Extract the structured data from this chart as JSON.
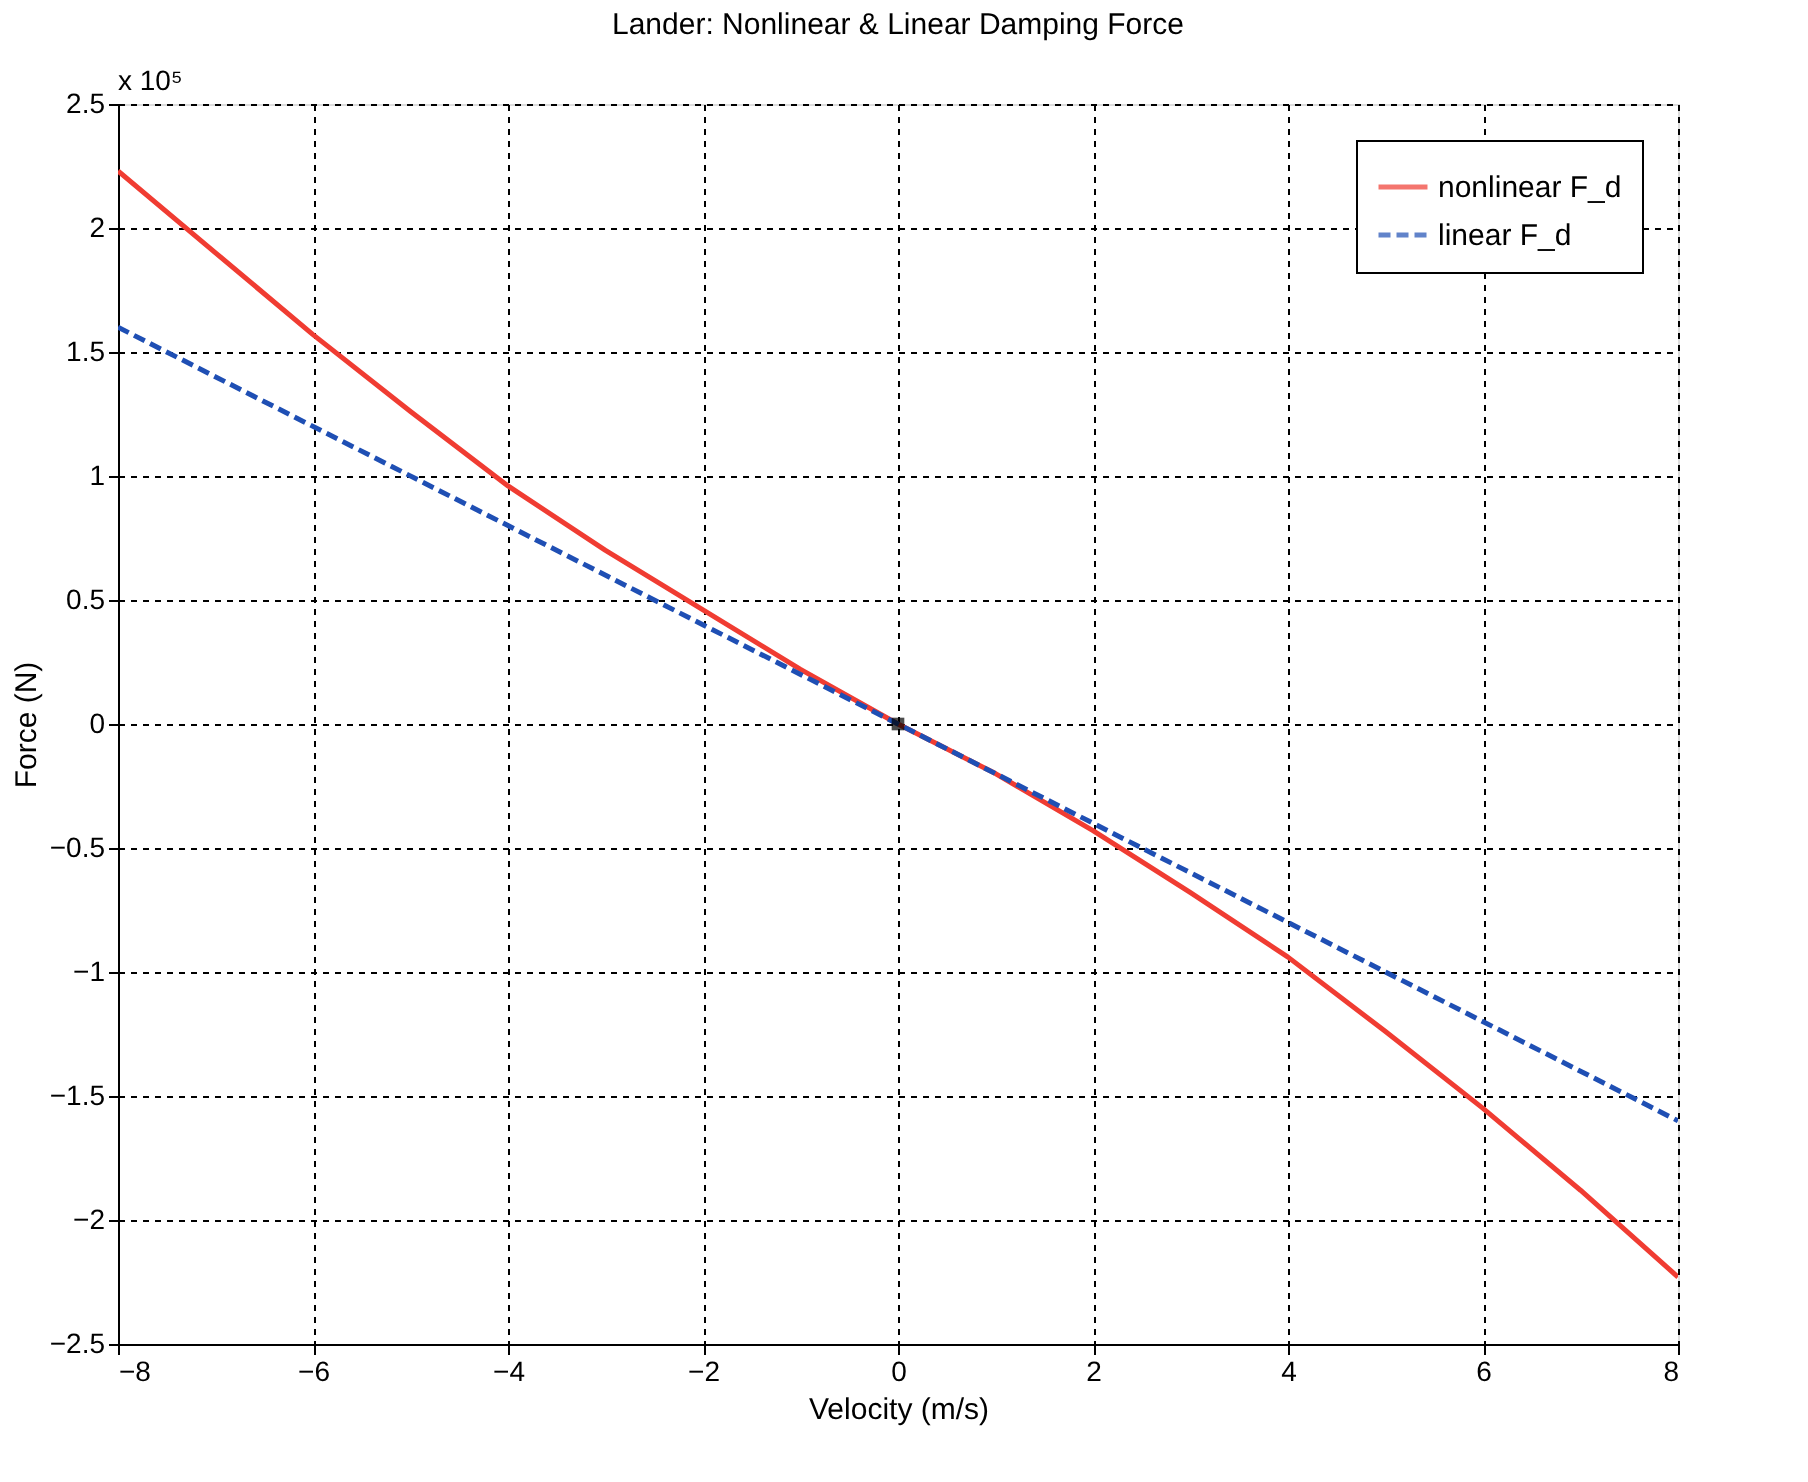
{
  "chart_data": {
    "type": "line",
    "title": "Lander:  Nonlinear & Linear Damping Force",
    "xlabel": "Velocity (m/s)",
    "ylabel": "Force (N)",
    "annotations": [
      "x 10⁵"
    ],
    "xlim": [
      -8,
      8
    ],
    "xticks": [
      -8,
      -6,
      -4,
      -2,
      0,
      2,
      4,
      6,
      8
    ],
    "ylim": [
      -2.5,
      2.5
    ],
    "yticks": [
      -2.5,
      -2,
      -1.5,
      -1,
      -0.5,
      0,
      0.5,
      1,
      1.5,
      2,
      2.5
    ],
    "grid": true,
    "legend": "top right",
    "series": [
      {
        "name": "nonlinear F_d",
        "color": "#f03c32",
        "line_style": "solid",
        "x": [
          -8,
          -7,
          -6,
          -5,
          -4,
          -3,
          -2,
          -1,
          0,
          1,
          2,
          3,
          4,
          5,
          6,
          7,
          8
        ],
        "values": [
          2.23,
          1.9,
          1.57,
          1.26,
          0.96,
          0.7,
          0.46,
          0.22,
          0,
          -0.2,
          -0.43,
          -0.68,
          -0.94,
          -1.24,
          -1.55,
          -1.88,
          -2.23
        ]
      },
      {
        "name": "linear F_d",
        "color": "#1f4fb4",
        "line_style": "dashed",
        "x": [
          -8,
          -4,
          0,
          4,
          8
        ],
        "values": [
          1.6,
          0.8,
          0,
          -0.8,
          -1.6
        ]
      },
      {
        "type": "scatter",
        "color": "#000000",
        "marker": "square",
        "x": [
          0
        ],
        "values": [
          0
        ]
      }
    ]
  }
}
